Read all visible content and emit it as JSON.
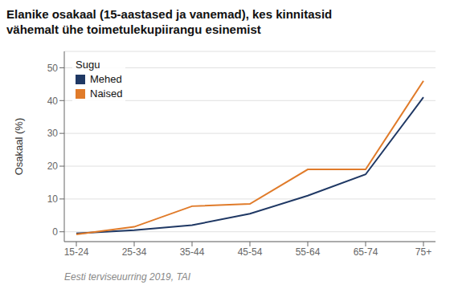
{
  "chart_data": {
    "type": "line",
    "title": "Elanike osakaal (15-aastased ja vanemad), kes kinnitasid\nvähemalt ühe toimetulekupiirangu esinemist",
    "ylabel": "Osakaal (%)",
    "footnote": "Eesti terviseuurring 2019, TAI",
    "categories": [
      "15-24",
      "25-34",
      "35-44",
      "45-54",
      "55-64",
      "65-74",
      "75+"
    ],
    "series": [
      {
        "name": "Mehed",
        "color": "#1f3864",
        "values": [
          -0.5,
          0.5,
          2.0,
          5.5,
          11.0,
          17.5,
          41.0
        ]
      },
      {
        "name": "Naised",
        "color": "#e07b2a",
        "values": [
          -0.8,
          1.5,
          7.8,
          8.5,
          19.0,
          19.0,
          46.0
        ]
      }
    ],
    "legend_title": "Sugu",
    "legend": "upper left",
    "ylim": [
      -3,
      55
    ],
    "yticks": [
      0,
      10,
      20,
      30,
      40,
      50
    ],
    "grid": true
  }
}
